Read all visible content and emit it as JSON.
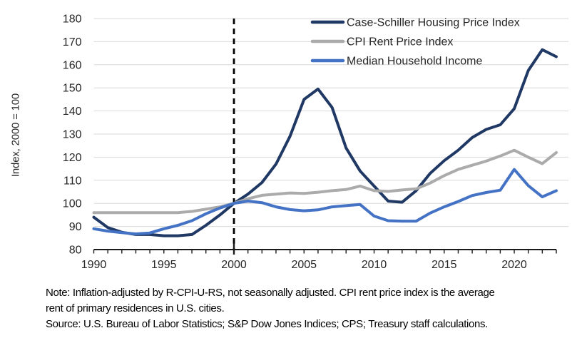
{
  "figure": {
    "ylabel": "Index, 2000 = 100",
    "note_line1": "Note: Inflation-adjusted by R-CPI-U-RS, not seasonally adjusted. CPI rent price index is the average",
    "note_line2": "rent of primary residences in U.S. cities.",
    "note_line3": "Source: U.S. Bureau of Labor Statistics; S&P Dow Jones Indices; CPS; Treasury staff calculations."
  },
  "chart_data": {
    "type": "line",
    "title": "",
    "xlabel": "",
    "ylabel": "Index, 2000 = 100",
    "ylim": [
      80,
      180
    ],
    "ytick_step": 10,
    "xlim": [
      1990,
      2023
    ],
    "xticks": [
      1990,
      1995,
      2000,
      2005,
      2010,
      2015,
      2020
    ],
    "grid": true,
    "reference_line_x": 2000,
    "legend_position": "top-right",
    "colors": {
      "case_shiller": "#1F3864",
      "cpi_rent": "#ABABAB",
      "median_income": "#4472C4",
      "gridline": "#D9D9D9",
      "axis": "#1a1a1a",
      "reference_line": "#000000"
    },
    "x": [
      1990,
      1991,
      1992,
      1993,
      1994,
      1995,
      1996,
      1997,
      1998,
      1999,
      2000,
      2001,
      2002,
      2003,
      2004,
      2005,
      2006,
      2007,
      2008,
      2009,
      2010,
      2011,
      2012,
      2013,
      2014,
      2015,
      2016,
      2017,
      2018,
      2019,
      2020,
      2021,
      2022,
      2023
    ],
    "series": [
      {
        "name": "Case-Schiller Housing Price Index",
        "color_key": "case_shiller",
        "values": [
          94,
          89.5,
          87.5,
          86.5,
          86.5,
          86,
          86,
          86.5,
          90.5,
          95,
          100,
          104,
          109,
          117,
          129,
          145,
          149.5,
          141.5,
          124,
          114,
          107.5,
          101,
          100.5,
          105.5,
          113,
          118.5,
          123,
          128.5,
          132,
          134,
          141,
          157.5,
          166.5,
          163.5
        ]
      },
      {
        "name": "CPI Rent Price Index",
        "color_key": "cpi_rent",
        "values": [
          96,
          96,
          96,
          96,
          96,
          96,
          96,
          96.5,
          97.5,
          98.5,
          100,
          102,
          103.5,
          104,
          104.5,
          104.3,
          104.8,
          105.5,
          106,
          107.5,
          105.5,
          105.2,
          105.8,
          106.3,
          108.8,
          112,
          114.7,
          116.5,
          118.3,
          120.5,
          123,
          120,
          117.2,
          122
        ]
      },
      {
        "name": "Median Household Income",
        "color_key": "median_income",
        "values": [
          89,
          88,
          87.3,
          86.8,
          87.2,
          89,
          90.5,
          92.5,
          95.5,
          98,
          100,
          101,
          100.3,
          98.5,
          97.3,
          96.8,
          97.2,
          98.5,
          99,
          99.5,
          94.5,
          92.5,
          92.3,
          92.3,
          95.8,
          98.5,
          100.8,
          103.4,
          104.7,
          105.7,
          114.7,
          107.7,
          102.8,
          105.5
        ]
      }
    ]
  }
}
